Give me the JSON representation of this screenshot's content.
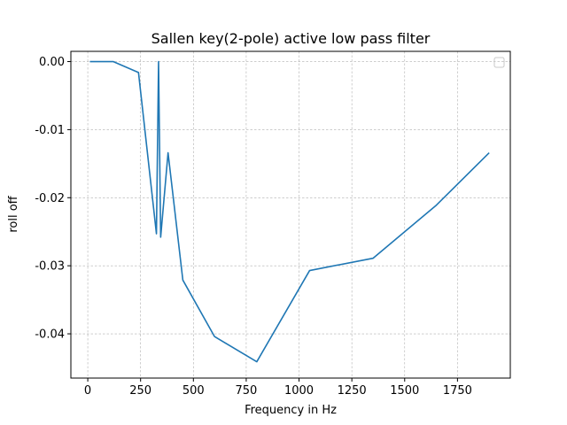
{
  "chart_data": {
    "type": "line",
    "title": "Sallen key(2-pole) active low pass filter",
    "xlabel": "Frequency in Hz",
    "ylabel": "roll off",
    "xlim": [
      -80,
      2000
    ],
    "ylim": [
      -0.0465,
      0.0015
    ],
    "grid": true,
    "legend": {
      "placement": "top-right",
      "entries": []
    },
    "x_ticks": [
      {
        "value": 0,
        "label": "0"
      },
      {
        "value": 250,
        "label": "250"
      },
      {
        "value": 500,
        "label": "500"
      },
      {
        "value": 750,
        "label": "750"
      },
      {
        "value": 1000,
        "label": "1000"
      },
      {
        "value": 1250,
        "label": "1250"
      },
      {
        "value": 1500,
        "label": "1500"
      },
      {
        "value": 1750,
        "label": "1750"
      }
    ],
    "y_ticks": [
      {
        "value": 0.0,
        "label": "0.00"
      },
      {
        "value": -0.01,
        "label": "-0.01"
      },
      {
        "value": -0.02,
        "label": "-0.02"
      },
      {
        "value": -0.03,
        "label": "-0.03"
      },
      {
        "value": -0.04,
        "label": "-0.04"
      }
    ],
    "series": [
      {
        "color": "#1f77b4",
        "x": [
          10,
          120,
          240,
          325,
          335,
          345,
          380,
          450,
          600,
          800,
          1050,
          1350,
          1650,
          1900
        ],
        "y": [
          0.0,
          0.0,
          -0.0016,
          -0.0253,
          0.0,
          -0.0258,
          -0.0134,
          -0.0321,
          -0.0404,
          -0.0441,
          -0.0307,
          -0.0289,
          -0.0211,
          -0.0134
        ]
      }
    ]
  }
}
